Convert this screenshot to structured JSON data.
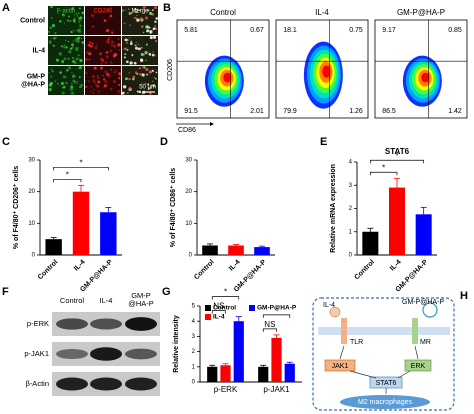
{
  "panels": {
    "A": {
      "letter": "A",
      "rows": [
        [
          "Control"
        ],
        [
          "IL-4"
        ],
        [
          "GM-P",
          "@HA-P"
        ]
      ],
      "columns": [
        "F-actin",
        "CD206",
        "Merge"
      ],
      "scale_bar": "50 μm"
    },
    "B": {
      "letter": "B",
      "groups": [
        {
          "title": "Control",
          "quadrants": [
            "5.81",
            "0.67",
            "91.5",
            "2.01"
          ]
        },
        {
          "title": "IL-4",
          "quadrants": [
            "18.1",
            "0.75",
            "79.9",
            "1.26"
          ]
        },
        {
          "title": "GM-P@HA-P",
          "quadrants": [
            "9.17",
            "0.85",
            "86.5",
            "1.42"
          ]
        }
      ],
      "ylabel": "CD206",
      "xlabel": "CD86"
    },
    "F": {
      "letter": "F",
      "columns": [
        [
          "Control"
        ],
        [
          "IL-4"
        ],
        [
          "GM-P",
          "@HA-P"
        ]
      ],
      "rows": [
        "p-ERK",
        "p-JAK1",
        "β-Actin"
      ]
    },
    "H": {
      "letter": "H",
      "ligand_left": "IL-4",
      "ligand_right": "GM-P@HA-P",
      "receptor_left": "TLR",
      "receptor_right": "MR",
      "node_left": "JAK1",
      "node_right": "ERK",
      "node_center": "STAT6",
      "outcome": "M2 macrophages"
    }
  },
  "chart_data": [
    {
      "type": "bar",
      "panel": "C",
      "ylabel": "% of F4/80⁺ CD206⁺ cells",
      "categories": [
        "Control",
        "IL-4",
        "GM-P@HA-P"
      ],
      "values": [
        5,
        20,
        13.5
      ],
      "errors": [
        0.5,
        2,
        1.5
      ],
      "colors": [
        "#000000",
        "#ff0000",
        "#0000ff"
      ],
      "ylim": [
        0,
        30
      ],
      "yticks": [
        0,
        10,
        20,
        30
      ],
      "annotations": [
        "*",
        "*"
      ]
    },
    {
      "type": "bar",
      "panel": "D",
      "ylabel": "% of F4/80⁺ CD86⁺ cells",
      "categories": [
        "Control",
        "IL-4",
        "GM-P@HA-P"
      ],
      "values": [
        3,
        3,
        2.5
      ],
      "errors": [
        0.5,
        0.3,
        0.3
      ],
      "colors": [
        "#000000",
        "#ff0000",
        "#0000ff"
      ],
      "ylim": [
        0,
        30
      ],
      "yticks": [
        0,
        10,
        20,
        30
      ]
    },
    {
      "type": "bar",
      "panel": "E",
      "title": "STAT6",
      "ylabel": "Relative mRNA expression",
      "categories": [
        "Control",
        "IL-4",
        "GM-P@HA-P"
      ],
      "values": [
        1,
        2.9,
        1.75
      ],
      "errors": [
        0.15,
        0.4,
        0.3
      ],
      "colors": [
        "#000000",
        "#ff0000",
        "#0000ff"
      ],
      "ylim": [
        0,
        4
      ],
      "yticks": [
        0,
        1,
        2,
        3,
        4
      ],
      "annotations": [
        "*",
        "*"
      ]
    },
    {
      "type": "grouped_bar",
      "panel": "G",
      "ylabel": "Relative intensity",
      "categories": [
        "p-ERK",
        "p-JAK1"
      ],
      "series": [
        {
          "name": "Control",
          "color": "#000000",
          "values": [
            1,
            1
          ],
          "errors": [
            0.1,
            0.1
          ]
        },
        {
          "name": "IL-4",
          "color": "#ff0000",
          "values": [
            1.1,
            2.9
          ],
          "errors": [
            0.1,
            0.2
          ]
        },
        {
          "name": "GM-P@HA-P",
          "color": "#0000ff",
          "values": [
            4,
            1.2
          ],
          "errors": [
            0.3,
            0.1
          ]
        }
      ],
      "ylim": [
        0,
        5
      ],
      "yticks": [
        0,
        1,
        2,
        3,
        4,
        5
      ],
      "legend": "upper left",
      "annotations": [
        "NS",
        "*",
        "NS",
        "*"
      ]
    }
  ]
}
